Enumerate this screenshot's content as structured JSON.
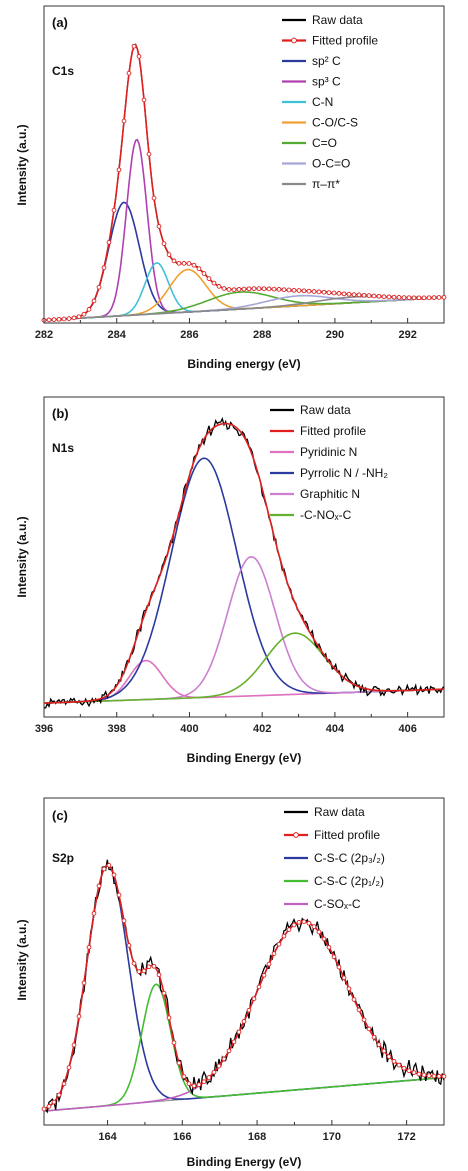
{
  "chart_data": [
    {
      "type": "line",
      "panel": "(a)",
      "region": "C1s",
      "xlabel": "Binding energy (eV)",
      "ylabel": "Intensity (a.u.)",
      "xlim": [
        282,
        293
      ],
      "ylim": [
        0,
        1.12
      ],
      "xticks": [
        282,
        284,
        286,
        288,
        290,
        292
      ],
      "baseline": [
        [
          282,
          0.01
        ],
        [
          293,
          0.09
        ]
      ],
      "components": [
        {
          "name": "sp2 C",
          "color": "#2b3a9e",
          "center": 284.2,
          "amp": 0.4,
          "width": 0.42
        },
        {
          "name": "sp3 C",
          "color": "#b040b0",
          "center": 284.55,
          "amp": 0.62,
          "width": 0.28
        },
        {
          "name": "C-N",
          "color": "#3fc2d8",
          "center": 285.1,
          "amp": 0.18,
          "width": 0.32
        },
        {
          "name": "C-O/C-S",
          "color": "#f0a030",
          "center": 285.95,
          "amp": 0.15,
          "width": 0.5
        },
        {
          "name": "C=O",
          "color": "#55aa33",
          "center": 287.4,
          "amp": 0.06,
          "width": 0.9
        },
        {
          "name": "O-C=O",
          "color": "#a6a6d8",
          "center": 289.0,
          "amp": 0.035,
          "width": 0.9
        },
        {
          "name": "π–π*",
          "color": "#888888",
          "center": 290.5,
          "amp": 0.02,
          "width": 1.0
        }
      ],
      "legend": [
        {
          "label": "Raw data",
          "color": "#000000",
          "marker": false
        },
        {
          "label": "Fitted profile",
          "color": "#e02020",
          "marker": true
        },
        {
          "label": "sp² C",
          "color": "#2b3a9e",
          "marker": false
        },
        {
          "label": "sp³ C",
          "color": "#b040b0",
          "marker": false
        },
        {
          "label": "C-N",
          "color": "#3fc2d8",
          "marker": false
        },
        {
          "label": "C-O/C-S",
          "color": "#f0a030",
          "marker": false
        },
        {
          "label": "C=O",
          "color": "#55aa33",
          "marker": false
        },
        {
          "label": "O-C=O",
          "color": "#a6a6d8",
          "marker": false
        },
        {
          "label": "π–π*",
          "color": "#888888",
          "marker": false
        }
      ]
    },
    {
      "type": "line",
      "panel": "(b)",
      "region": "N1s",
      "xlabel": "Binding Energy (eV)",
      "ylabel": "Intensity (a.u.)",
      "xlim": [
        396,
        407
      ],
      "ylim": [
        -0.05,
        1.1
      ],
      "xticks": [
        396,
        398,
        400,
        402,
        404,
        406
      ],
      "baseline": [
        [
          396,
          0.0
        ],
        [
          407,
          0.05
        ]
      ],
      "components": [
        {
          "name": "Pyridinic N",
          "color": "#e070c0",
          "center": 398.8,
          "amp": 0.14,
          "width": 0.45
        },
        {
          "name": "Pyrrolic N / -NH2",
          "color": "#2b3a9e",
          "center": 400.4,
          "amp": 0.86,
          "width": 0.9
        },
        {
          "name": "Graphitic N",
          "color": "#cc80d0",
          "center": 401.7,
          "amp": 0.5,
          "width": 0.65
        },
        {
          "name": "-C-NOx-C",
          "color": "#66b030",
          "center": 402.9,
          "amp": 0.22,
          "width": 0.8
        }
      ],
      "legend": [
        {
          "label": "Raw data",
          "color": "#000000",
          "marker": false
        },
        {
          "label": "Fitted profile",
          "color": "#e02020",
          "marker": false
        },
        {
          "label": "Pyridinic N",
          "color": "#e070c0",
          "marker": false
        },
        {
          "label": "Pyrrolic N / -NH₂",
          "color": "#2b3a9e",
          "marker": false
        },
        {
          "label": "Graphitic N",
          "color": "#cc80d0",
          "marker": false
        },
        {
          "label": "-C-NOₓ-C",
          "color": "#66b030",
          "marker": false
        }
      ]
    },
    {
      "type": "line",
      "panel": "(c)",
      "region": "S2p",
      "xlabel": "Binding Energy (eV)",
      "ylabel": "Intensity (a.u.)",
      "xlim": [
        162.3,
        173.0
      ],
      "ylim": [
        -0.05,
        1.12
      ],
      "xticks": [
        164,
        166,
        168,
        170,
        172
      ],
      "baseline": [
        [
          162.3,
          0.0
        ],
        [
          173.0,
          0.12
        ]
      ],
      "components": [
        {
          "name": "C-S-C (2p3/2)",
          "color": "#2b3a9e",
          "center": 164.0,
          "amp": 0.86,
          "width": 0.55
        },
        {
          "name": "C-S-C (2p1/2)",
          "color": "#44bb33",
          "center": 165.3,
          "amp": 0.42,
          "width": 0.38
        },
        {
          "name": "C-SOx-C",
          "color": "#c060c0",
          "center": 169.2,
          "amp": 0.6,
          "width": 1.2
        }
      ],
      "legend": [
        {
          "label": "Raw data",
          "color": "#000000",
          "marker": false
        },
        {
          "label": "Fitted profile",
          "color": "#e02020",
          "marker": true
        },
        {
          "label": "C-S-C (2p₃/₂)",
          "color": "#2b3a9e",
          "marker": false
        },
        {
          "label": "C-S-C (2p₁/₂)",
          "color": "#44bb33",
          "marker": false
        },
        {
          "label": "C-SOₓ-C",
          "color": "#c060c0",
          "marker": false
        }
      ]
    }
  ]
}
